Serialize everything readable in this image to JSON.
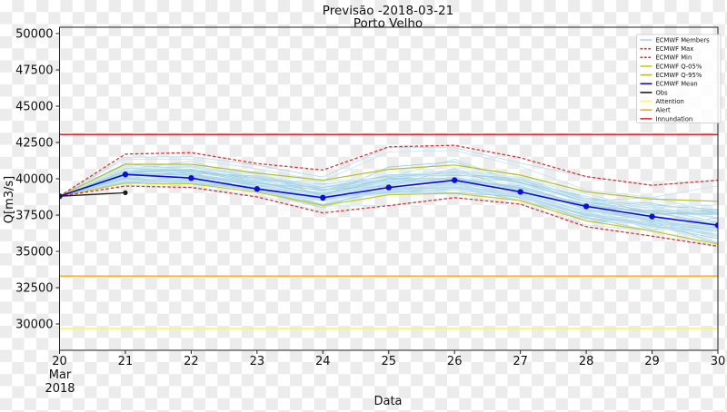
{
  "chart_data": {
    "type": "line",
    "title": "Previsão -2018-03-21",
    "subtitle": "Porto Velho",
    "xlabel": "Data",
    "ylabel": "Q[m3/s]",
    "x_unit_labels": [
      "Mar",
      "2018"
    ],
    "x": [
      20,
      21,
      22,
      23,
      24,
      25,
      26,
      27,
      28,
      29,
      30
    ],
    "xlim": [
      20,
      30
    ],
    "ylim": [
      28188,
      50438
    ],
    "y_ticks": [
      30000,
      32500,
      35000,
      37500,
      40000,
      42500,
      45000,
      47500,
      50000
    ],
    "grid": false,
    "legend_position": "upper-right",
    "background": "transparent-checker",
    "series": [
      {
        "id": "members",
        "name": "ECMWF Members",
        "type": "ensemble",
        "color": "#aed6e8",
        "count": 48
      },
      {
        "id": "max",
        "name": "ECMWF Max",
        "color": "#e83030",
        "dash": true,
        "values": [
          38800,
          41700,
          41800,
          41050,
          40600,
          42200,
          42300,
          41450,
          40150,
          39550,
          39900
        ]
      },
      {
        "id": "min",
        "name": "ECMWF Min",
        "color": "#e83030",
        "dash": true,
        "values": [
          38800,
          39500,
          39400,
          38750,
          37650,
          38150,
          38700,
          38250,
          36700,
          36050,
          35350
        ]
      },
      {
        "id": "q05",
        "name": "ECMWF Q-05%",
        "color": "#cbca2a",
        "dash": false,
        "values": [
          38800,
          39700,
          39650,
          39080,
          38150,
          38900,
          39000,
          38500,
          37100,
          36400,
          35500
        ]
      },
      {
        "id": "q95",
        "name": "ECMWF Q-95%",
        "color": "#b2c22e",
        "dash": false,
        "values": [
          38800,
          41000,
          41000,
          40400,
          39900,
          40650,
          40950,
          40250,
          39100,
          38600,
          38450
        ]
      },
      {
        "id": "mean",
        "name": "ECMWF Mean",
        "color": "#0d0de0",
        "dash": false,
        "marker": true,
        "values": [
          38800,
          40300,
          40050,
          39300,
          38700,
          39400,
          39900,
          39100,
          38100,
          37400,
          36800
        ]
      },
      {
        "id": "obs",
        "name": "Obs",
        "color": "#1c1c1c",
        "dash": false,
        "marker": true,
        "x": [
          20,
          21
        ],
        "values": [
          38800,
          39040
        ]
      }
    ],
    "thresholds": [
      {
        "id": "attention",
        "name": "Attention",
        "color": "#ffff33",
        "value": 29700
      },
      {
        "id": "alert",
        "name": "Alert",
        "color": "#ffa526",
        "value": 33300
      },
      {
        "id": "innundation",
        "name": "Innundation",
        "color": "#e03030",
        "value": 43050
      }
    ],
    "legend_order": [
      "members",
      "max",
      "min",
      "q05",
      "q95",
      "mean",
      "obs",
      "attention",
      "alert",
      "innundation"
    ]
  }
}
